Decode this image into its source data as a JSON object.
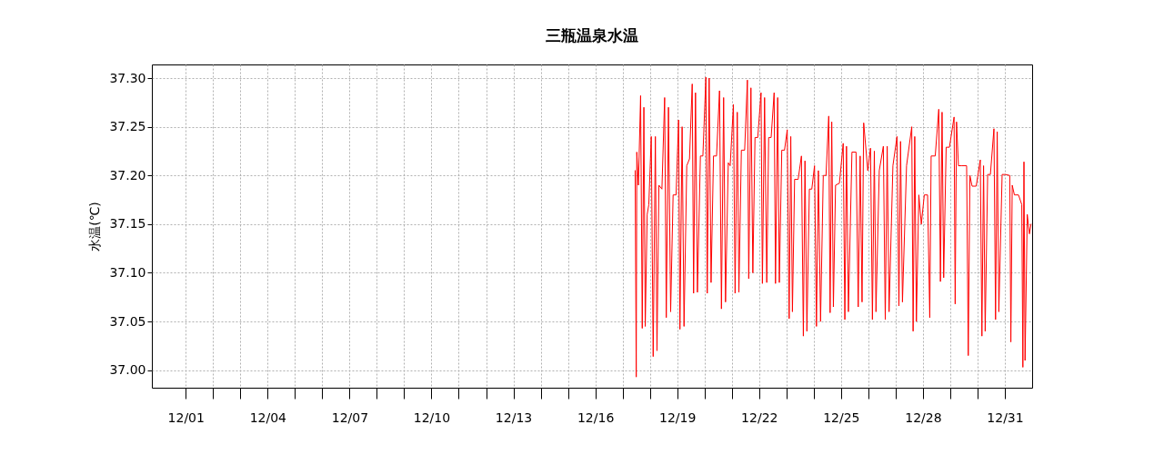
{
  "chart_data": {
    "type": "line",
    "title": "三瓶温泉水温",
    "ylabel": "水温(℃)",
    "grid": true,
    "xlim": [
      "--11-29T18:14",
      "--12-31T23:59"
    ],
    "ylim": [
      36.982,
      37.314
    ],
    "xticks": [
      {
        "value": "--12-01",
        "label": "12/01"
      },
      {
        "value": "--12-02",
        "label": null
      },
      {
        "value": "--12-03",
        "label": null
      },
      {
        "value": "--12-04",
        "label": "12/04"
      },
      {
        "value": "--12-05",
        "label": null
      },
      {
        "value": "--12-06",
        "label": null
      },
      {
        "value": "--12-07",
        "label": "12/07"
      },
      {
        "value": "--12-08",
        "label": null
      },
      {
        "value": "--12-09",
        "label": null
      },
      {
        "value": "--12-10",
        "label": "12/10"
      },
      {
        "value": "--12-11",
        "label": null
      },
      {
        "value": "--12-12",
        "label": null
      },
      {
        "value": "--12-13",
        "label": "12/13"
      },
      {
        "value": "--12-14",
        "label": null
      },
      {
        "value": "--12-15",
        "label": null
      },
      {
        "value": "--12-16",
        "label": "12/16"
      },
      {
        "value": "--12-17",
        "label": null
      },
      {
        "value": "--12-18",
        "label": null
      },
      {
        "value": "--12-19",
        "label": "12/19"
      },
      {
        "value": "--12-20",
        "label": null
      },
      {
        "value": "--12-21",
        "label": null
      },
      {
        "value": "--12-22",
        "label": "12/22"
      },
      {
        "value": "--12-23",
        "label": null
      },
      {
        "value": "--12-24",
        "label": null
      },
      {
        "value": "--12-25",
        "label": "12/25"
      },
      {
        "value": "--12-26",
        "label": null
      },
      {
        "value": "--12-27",
        "label": null
      },
      {
        "value": "--12-28",
        "label": "12/28"
      },
      {
        "value": "--12-29",
        "label": null
      },
      {
        "value": "--12-30",
        "label": null
      },
      {
        "value": "--12-31",
        "label": "12/31"
      }
    ],
    "yticks": [
      {
        "value": 37.0,
        "label": "37.00"
      },
      {
        "value": 37.05,
        "label": "37.05"
      },
      {
        "value": 37.1,
        "label": "37.10"
      },
      {
        "value": 37.15,
        "label": "37.15"
      },
      {
        "value": 37.2,
        "label": "37.20"
      },
      {
        "value": 37.25,
        "label": "37.25"
      },
      {
        "value": 37.3,
        "label": "37.30"
      }
    ],
    "x": [
      "--12-17T11:02",
      "--12-17T12:00",
      "--12-17T12:29",
      "--12-17T13:55",
      "--12-17T15:50",
      "--12-17T17:17",
      "--12-17T18:43",
      "--12-17T19:55",
      "--12-17T21:36",
      "--12-17T23:02",
      "--12-18T01:12",
      "--12-18T02:53",
      "--12-18T04:48",
      "--12-18T06:14",
      "--12-18T07:55",
      "--12-18T10:34",
      "--12-18T12:58",
      "--12-18T14:24",
      "--12-18T16:19",
      "--12-18T18:14",
      "--12-18T20:24",
      "--12-18T23:02",
      "--12-19T01:12",
      "--12-19T02:24",
      "--12-19T04:19",
      "--12-19T06:00",
      "--12-19T08:24",
      "--12-19T10:48",
      "--12-19T13:12",
      "--12-19T14:24",
      "--12-19T16:05",
      "--12-19T17:46",
      "--12-19T20:24",
      "--12-19T22:34",
      "--12-20T01:12",
      "--12-20T02:24",
      "--12-20T04:05",
      "--12-20T05:46",
      "--12-20T07:55",
      "--12-20T10:34",
      "--12-20T13:12",
      "--12-20T14:53",
      "--12-20T16:48",
      "--12-20T18:29",
      "--12-20T20:53",
      "--12-20T22:34",
      "--12-21T01:26",
      "--12-21T02:53",
      "--12-21T04:48",
      "--12-21T06:14",
      "--12-21T08:24",
      "--12-21T11:17",
      "--12-21T13:41",
      "--12-21T14:53",
      "--12-21T16:48",
      "--12-21T18:29",
      "--12-21T20:24",
      "--12-21T22:48",
      "--12-22T01:41",
      "--12-22T02:53",
      "--12-22T04:48",
      "--12-22T06:43",
      "--12-22T08:24",
      "--12-22T10:34",
      "--12-22T13:12",
      "--12-22T14:24",
      "--12-22T16:19",
      "--12-22T17:46",
      "--12-22T19:55",
      "--12-22T22:19",
      "--12-23T00:43",
      "--12-23T02:24",
      "--12-23T03:50",
      "--12-23T05:17",
      "--12-23T07:12",
      "--12-23T10:19",
      "--12-23T13:12",
      "--12-23T14:53",
      "--12-23T16:19",
      "--12-23T18:00",
      "--12-23T20:10",
      "--12-23T22:19",
      "--12-24T00:43",
      "--12-24T02:24",
      "--12-24T04:05",
      "--12-24T06:00",
      "--12-24T08:24",
      "--12-24T10:48",
      "--12-24T13:12",
      "--12-24T14:24",
      "--12-24T15:50",
      "--12-24T17:17",
      "--12-24T19:12",
      "--12-24T22:34",
      "--12-25T01:55",
      "--12-25T03:22",
      "--12-25T04:48",
      "--12-25T06:29",
      "--12-25T09:36",
      "--12-25T13:12",
      "--12-25T15:07",
      "--12-25T16:48",
      "--12-25T18:29",
      "--12-25T19:55",
      "--12-25T23:31",
      "--12-26T01:55",
      "--12-26T03:36",
      "--12-26T05:17",
      "--12-26T06:43",
      "--12-26T09:36",
      "--12-26T13:12",
      "--12-26T14:53",
      "--12-26T16:34",
      "--12-26T18:14",
      "--12-26T21:36",
      "--12-27T01:12",
      "--12-27T02:53",
      "--12-27T04:19",
      "--12-27T06:00",
      "--12-27T09:36",
      "--12-27T14:10",
      "--12-27T15:22",
      "--12-27T16:48",
      "--12-27T18:14",
      "--12-27T20:24",
      "--12-27T22:34",
      "--12-28T01:12",
      "--12-28T04:05",
      "--12-28T06:00",
      "--12-28T07:12",
      "--12-28T10:48",
      "--12-28T13:55",
      "--12-28T15:22",
      "--12-28T16:48",
      "--12-28T18:14",
      "--12-28T20:24",
      "--12-28T23:17",
      "--12-29T03:22",
      "--12-29T04:19",
      "--12-29T05:31",
      "--12-29T07:12",
      "--12-29T10:19",
      "--12-29T14:24",
      "--12-29T15:50",
      "--12-29T17:17",
      "--12-29T19:12",
      "--12-29T22:48",
      "--12-30T02:24",
      "--12-30T03:50",
      "--12-30T05:17",
      "--12-30T06:43",
      "--12-30T08:53",
      "--12-30T11:17",
      "--12-30T14:24",
      "--12-30T15:50",
      "--12-30T17:17",
      "--12-30T18:43",
      "--12-30T21:36",
      "--12-31T00:29",
      "--12-31T04:19",
      "--12-31T05:17",
      "--12-31T06:29",
      "--12-31T08:24",
      "--12-31T12:00",
      "--12-31T14:53",
      "--12-31T15:50",
      "--12-31T16:48",
      "--12-31T17:46",
      "--12-31T19:41",
      "--12-31T21:36",
      "--12-31T23:02"
    ],
    "series": [
      {
        "color": "#ff0000",
        "values": [
          37.205,
          36.993,
          37.224,
          37.19,
          37.282,
          37.043,
          37.27,
          37.045,
          37.16,
          37.17,
          37.24,
          37.014,
          37.24,
          37.02,
          37.19,
          37.186,
          37.28,
          37.054,
          37.27,
          37.06,
          37.18,
          37.18,
          37.257,
          37.042,
          37.25,
          37.045,
          37.21,
          37.217,
          37.294,
          37.079,
          37.285,
          37.08,
          37.22,
          37.22,
          37.301,
          37.079,
          37.3,
          37.09,
          37.22,
          37.22,
          37.287,
          37.063,
          37.28,
          37.07,
          37.213,
          37.21,
          37.273,
          37.079,
          37.265,
          37.08,
          37.226,
          37.226,
          37.298,
          37.094,
          37.29,
          37.1,
          37.239,
          37.239,
          37.285,
          37.089,
          37.28,
          37.09,
          37.239,
          37.239,
          37.285,
          37.089,
          37.28,
          37.09,
          37.226,
          37.226,
          37.247,
          37.053,
          37.24,
          37.06,
          37.196,
          37.196,
          37.22,
          37.035,
          37.215,
          37.04,
          37.186,
          37.186,
          37.21,
          37.045,
          37.205,
          37.05,
          37.2,
          37.2,
          37.261,
          37.059,
          37.255,
          37.065,
          37.19,
          37.192,
          37.233,
          37.052,
          37.23,
          37.06,
          37.224,
          37.224,
          37.065,
          37.22,
          37.07,
          37.254,
          37.205,
          37.228,
          37.052,
          37.225,
          37.06,
          37.205,
          37.23,
          37.052,
          37.23,
          37.06,
          37.21,
          37.24,
          37.066,
          37.235,
          37.07,
          37.21,
          37.25,
          37.04,
          37.24,
          37.05,
          37.18,
          37.15,
          37.18,
          37.18,
          37.054,
          37.22,
          37.22,
          37.268,
          37.091,
          37.265,
          37.095,
          37.229,
          37.229,
          37.26,
          37.068,
          37.255,
          37.21,
          37.21,
          37.21,
          37.015,
          37.2,
          37.189,
          37.189,
          37.216,
          37.035,
          37.21,
          37.04,
          37.201,
          37.201,
          37.248,
          37.052,
          37.245,
          37.06,
          37.201,
          37.201,
          37.2,
          37.029,
          37.19,
          37.18,
          37.18,
          37.17,
          37.003,
          37.214,
          37.01,
          37.16,
          37.14,
          37.15
        ]
      }
    ]
  }
}
